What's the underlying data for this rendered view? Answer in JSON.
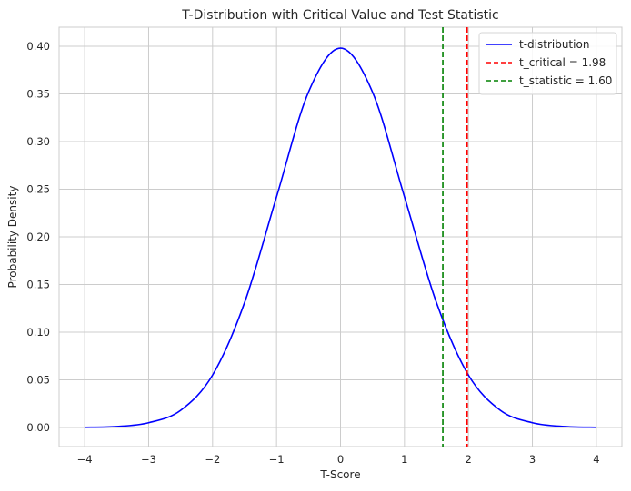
{
  "chart_data": {
    "type": "line",
    "title": "T-Distribution with Critical Value and Test Statistic",
    "xlabel": "T-Score",
    "ylabel": "Probability Density",
    "xlim": [
      -4.4,
      4.4
    ],
    "ylim": [
      -0.02,
      0.42
    ],
    "xticks": [
      -4,
      -3,
      -2,
      -1,
      0,
      1,
      2,
      3,
      4
    ],
    "xtick_labels": [
      "−4",
      "−3",
      "−2",
      "−1",
      "0",
      "1",
      "2",
      "3",
      "4"
    ],
    "yticks": [
      0.0,
      0.05,
      0.1,
      0.15,
      0.2,
      0.25,
      0.3,
      0.35,
      0.4
    ],
    "ytick_labels": [
      "0.00",
      "0.05",
      "0.10",
      "0.15",
      "0.20",
      "0.25",
      "0.30",
      "0.35",
      "0.40"
    ],
    "grid": true,
    "legend_position": "top-right",
    "series": [
      {
        "name": "t-distribution",
        "color": "#0000ff",
        "style": "solid",
        "x": [
          -4.0,
          -3.5,
          -3.0,
          -2.5,
          -2.0,
          -1.5,
          -1.0,
          -0.5,
          0.0,
          0.5,
          1.0,
          1.5,
          2.0,
          2.5,
          3.0,
          3.5,
          4.0
        ],
        "y": [
          0.0002,
          0.001,
          0.005,
          0.018,
          0.055,
          0.131,
          0.242,
          0.352,
          0.398,
          0.352,
          0.242,
          0.131,
          0.055,
          0.018,
          0.005,
          0.001,
          0.0002
        ]
      }
    ],
    "vlines": [
      {
        "name": "t_critical = 1.98",
        "x": 1.98,
        "color": "#ff0000",
        "style": "dashed"
      },
      {
        "name": "t_statistic = 1.60",
        "x": 1.6,
        "color": "#008000",
        "style": "dashed"
      }
    ]
  }
}
